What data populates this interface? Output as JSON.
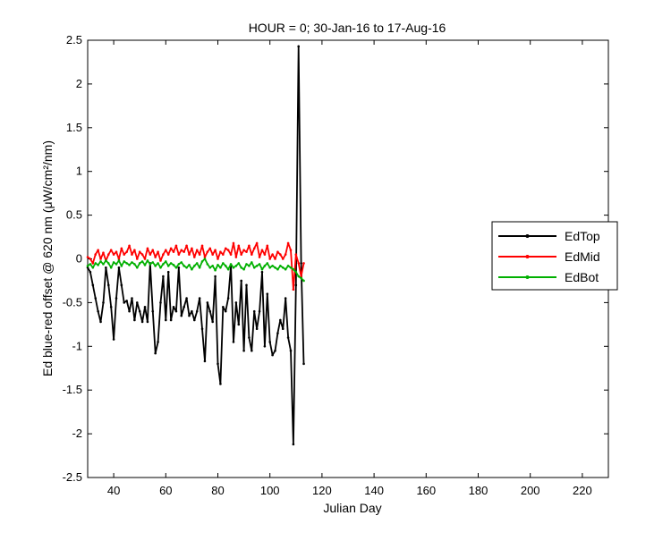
{
  "chart_data": {
    "type": "line",
    "title": "HOUR = 0; 30-Jan-16 to 17-Aug-16",
    "xlabel": "Julian Day",
    "ylabel": "Ed blue-red offset @ 620 nm (μW/cm²/nm)",
    "xlim": [
      30,
      230
    ],
    "ylim": [
      -2.5,
      2.5
    ],
    "xticks": [
      40,
      60,
      80,
      100,
      120,
      140,
      160,
      180,
      200,
      220
    ],
    "yticks": [
      -2.5,
      -2,
      -1.5,
      -1,
      -0.5,
      0,
      0.5,
      1,
      1.5,
      2,
      2.5
    ],
    "ytick_labels": [
      "-2.5",
      "-2",
      "-1.5",
      "-1",
      "-0.5",
      "0",
      "0.5",
      "1",
      "1.5",
      "2",
      "2.5"
    ],
    "grid": false,
    "legend_position": "right",
    "series": [
      {
        "name": "EdTop",
        "color": "#000000",
        "x": [
          30,
          31,
          32,
          33,
          34,
          35,
          36,
          37,
          38,
          39,
          40,
          41,
          42,
          43,
          44,
          45,
          46,
          47,
          48,
          49,
          50,
          51,
          52,
          53,
          54,
          55,
          56,
          57,
          58,
          59,
          60,
          61,
          62,
          63,
          64,
          65,
          66,
          67,
          68,
          69,
          70,
          71,
          72,
          73,
          74,
          75,
          76,
          77,
          78,
          79,
          80,
          81,
          82,
          83,
          84,
          85,
          86,
          87,
          88,
          89,
          90,
          91,
          92,
          93,
          94,
          95,
          96,
          97,
          98,
          99,
          100,
          101,
          102,
          103,
          104,
          105,
          106,
          107,
          108,
          109,
          110,
          111,
          112,
          113
        ],
        "values": [
          -0.1,
          -0.15,
          -0.3,
          -0.45,
          -0.6,
          -0.72,
          -0.5,
          -0.1,
          -0.3,
          -0.55,
          -0.92,
          -0.45,
          -0.1,
          -0.3,
          -0.5,
          -0.48,
          -0.6,
          -0.45,
          -0.7,
          -0.5,
          -0.6,
          -0.72,
          -0.55,
          -0.72,
          -0.05,
          -0.6,
          -1.08,
          -0.95,
          -0.5,
          -0.2,
          -0.7,
          -0.15,
          -0.7,
          -0.55,
          -0.6,
          -0.1,
          -0.65,
          -0.55,
          -0.45,
          -0.65,
          -0.6,
          -0.7,
          -0.6,
          -0.45,
          -0.8,
          -1.17,
          -0.5,
          -0.6,
          -0.72,
          -0.2,
          -1.2,
          -1.43,
          -0.55,
          -0.6,
          -0.45,
          -0.08,
          -0.95,
          -0.5,
          -0.75,
          -0.25,
          -1.05,
          -0.3,
          -0.9,
          -1.05,
          -0.6,
          -0.8,
          -0.6,
          -0.15,
          -1.0,
          -0.4,
          -0.95,
          -1.1,
          -1.05,
          -0.85,
          -0.7,
          -0.8,
          -0.45,
          -0.9,
          -1.05,
          -2.12,
          -0.3,
          2.43,
          -0.05,
          -1.2
        ]
      },
      {
        "name": "EdMid",
        "color": "#ff0000",
        "x": [
          30,
          31,
          32,
          33,
          34,
          35,
          36,
          37,
          38,
          39,
          40,
          41,
          42,
          43,
          44,
          45,
          46,
          47,
          48,
          49,
          50,
          51,
          52,
          53,
          54,
          55,
          56,
          57,
          58,
          59,
          60,
          61,
          62,
          63,
          64,
          65,
          66,
          67,
          68,
          69,
          70,
          71,
          72,
          73,
          74,
          75,
          76,
          77,
          78,
          79,
          80,
          81,
          82,
          83,
          84,
          85,
          86,
          87,
          88,
          89,
          90,
          91,
          92,
          93,
          94,
          95,
          96,
          97,
          98,
          99,
          100,
          101,
          102,
          103,
          104,
          105,
          106,
          107,
          108,
          109,
          110,
          111,
          112,
          113
        ],
        "values": [
          0.02,
          0.0,
          -0.05,
          0.05,
          0.1,
          0.0,
          0.07,
          -0.02,
          0.05,
          0.1,
          0.05,
          0.08,
          0.0,
          0.12,
          0.05,
          0.08,
          0.15,
          0.05,
          0.1,
          0.0,
          0.08,
          0.05,
          0.0,
          0.12,
          0.05,
          0.1,
          0.02,
          0.08,
          -0.02,
          0.05,
          0.1,
          0.05,
          0.12,
          0.08,
          0.15,
          0.05,
          0.1,
          0.08,
          0.15,
          0.05,
          0.12,
          0.02,
          0.1,
          0.05,
          0.15,
          0.02,
          0.08,
          0.12,
          0.05,
          0.1,
          0.0,
          0.08,
          0.05,
          0.12,
          0.1,
          0.05,
          0.18,
          0.02,
          0.15,
          0.05,
          0.1,
          0.08,
          0.15,
          0.05,
          0.12,
          0.18,
          0.02,
          0.1,
          0.05,
          0.15,
          0.0,
          0.05,
          0.0,
          0.08,
          0.05,
          0.0,
          0.05,
          0.18,
          0.1,
          -0.35,
          0.05,
          -0.05,
          -0.2,
          -0.05
        ]
      },
      {
        "name": "EdBot",
        "color": "#00b000",
        "x": [
          30,
          31,
          32,
          33,
          34,
          35,
          36,
          37,
          38,
          39,
          40,
          41,
          42,
          43,
          44,
          45,
          46,
          47,
          48,
          49,
          50,
          51,
          52,
          53,
          54,
          55,
          56,
          57,
          58,
          59,
          60,
          61,
          62,
          63,
          64,
          65,
          66,
          67,
          68,
          69,
          70,
          71,
          72,
          73,
          74,
          75,
          76,
          77,
          78,
          79,
          80,
          81,
          82,
          83,
          84,
          85,
          86,
          87,
          88,
          89,
          90,
          91,
          92,
          93,
          94,
          95,
          96,
          97,
          98,
          99,
          100,
          101,
          102,
          103,
          104,
          105,
          106,
          107,
          108,
          109,
          110,
          111,
          112,
          113
        ],
        "values": [
          -0.08,
          -0.06,
          -0.1,
          -0.05,
          -0.07,
          -0.03,
          -0.06,
          -0.02,
          -0.05,
          -0.1,
          -0.04,
          -0.06,
          -0.02,
          -0.08,
          -0.03,
          -0.05,
          -0.07,
          -0.04,
          -0.06,
          -0.1,
          -0.05,
          -0.03,
          -0.07,
          -0.02,
          -0.06,
          -0.04,
          -0.08,
          -0.05,
          -0.1,
          -0.06,
          -0.03,
          -0.08,
          -0.05,
          -0.07,
          -0.1,
          -0.06,
          -0.04,
          -0.08,
          -0.1,
          -0.07,
          -0.12,
          -0.08,
          -0.05,
          -0.1,
          -0.03,
          0.0,
          -0.06,
          -0.1,
          -0.08,
          -0.13,
          -0.07,
          -0.1,
          -0.05,
          -0.08,
          -0.12,
          -0.06,
          -0.1,
          -0.08,
          -0.05,
          -0.1,
          -0.12,
          -0.06,
          -0.08,
          -0.04,
          -0.1,
          -0.08,
          -0.06,
          -0.12,
          -0.08,
          -0.05,
          -0.1,
          -0.08,
          -0.1,
          -0.12,
          -0.08,
          -0.1,
          -0.12,
          -0.08,
          -0.1,
          -0.12,
          -0.15,
          -0.2,
          -0.22,
          -0.25
        ]
      }
    ]
  }
}
